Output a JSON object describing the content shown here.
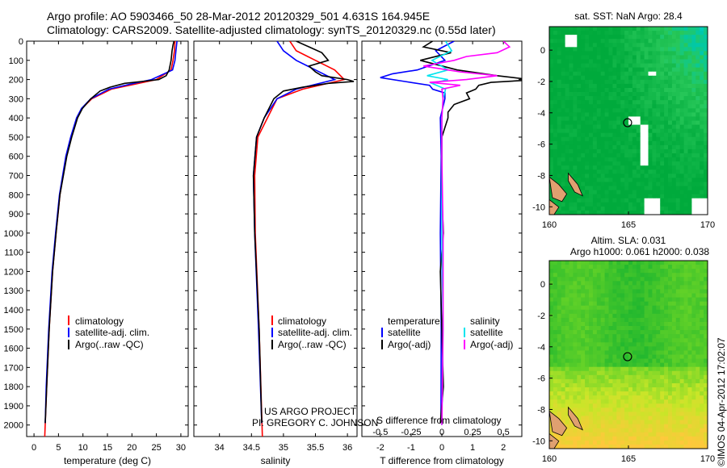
{
  "header": {
    "title_line1": "Argo profile: AO 5903466_50 28-Mar-2012 20120329_501 4.631S 164.945E",
    "title_line2": "Climatology: CARS2009. Satellite-adjusted climatology: synTS_20120329.nc (0.55d later)"
  },
  "colors": {
    "climatology": "#ff0000",
    "satellite": "#0000ff",
    "argo": "#000000",
    "sal_satellite": "#00e5ee",
    "sal_argo": "#ff00ff"
  },
  "chart_data": [
    {
      "id": "temperature",
      "type": "line",
      "xlabel": "temperature (deg C)",
      "ylabel": "",
      "xlim": [
        -1.5,
        31.5
      ],
      "ylim": [
        2060,
        0
      ],
      "xticks": [
        "0",
        "5",
        "10",
        "15",
        "20",
        "25",
        "30"
      ],
      "yticks": [
        "0",
        "100",
        "200",
        "300",
        "400",
        "500",
        "600",
        "700",
        "800",
        "900",
        "1000",
        "1100",
        "1200",
        "1300",
        "1400",
        "1500",
        "1600",
        "1700",
        "1800",
        "1900",
        "2000"
      ],
      "legend": [
        "climatology",
        "satellite-adj. clim.",
        "Argo(..raw -QC)"
      ],
      "series": [
        {
          "name": "climatology",
          "depth": [
            0,
            50,
            100,
            150,
            200,
            225,
            250,
            300,
            350,
            400,
            500,
            600,
            800,
            1000,
            1200,
            1500,
            1800,
            2060
          ],
          "values": [
            28.8,
            28.7,
            28.4,
            28.0,
            25.0,
            20.5,
            15.8,
            11.8,
            9.8,
            8.8,
            7.6,
            6.6,
            5.3,
            4.5,
            3.8,
            3.1,
            2.6,
            2.2
          ]
        },
        {
          "name": "satellite-adj. clim.",
          "depth": [
            0,
            50,
            100,
            150,
            200,
            225,
            250,
            300,
            350,
            400,
            500,
            600,
            800,
            1000,
            1200,
            1500,
            1800,
            1990
          ],
          "values": [
            29.2,
            29.0,
            28.8,
            28.3,
            24.0,
            19.5,
            15.3,
            11.6,
            9.7,
            8.7,
            7.5,
            6.5,
            5.2,
            4.4,
            3.7,
            3.0,
            2.5,
            2.3
          ]
        },
        {
          "name": "Argo(..raw -QC)",
          "depth": [
            0,
            20,
            50,
            100,
            150,
            180,
            200,
            210,
            220,
            240,
            260,
            300,
            350,
            400,
            500,
            600,
            800,
            1000,
            1200,
            1500,
            1800,
            1990
          ],
          "values": [
            28.6,
            28.4,
            28.2,
            28.0,
            27.6,
            27.0,
            25.5,
            22.0,
            18.5,
            15.5,
            13.5,
            11.6,
            9.9,
            8.9,
            7.7,
            6.7,
            5.3,
            4.5,
            3.8,
            3.1,
            2.6,
            2.3
          ]
        }
      ]
    },
    {
      "id": "salinity",
      "type": "line",
      "xlabel": "salinity",
      "xlim": [
        33.6,
        36.15
      ],
      "ylim": [
        2060,
        0
      ],
      "xticks": [
        "34",
        "34.5",
        "35",
        "35.5",
        "36"
      ],
      "legend": [
        "climatology",
        "satellite-adj. clim.",
        "Argo(..raw -QC)"
      ],
      "series": [
        {
          "name": "climatology",
          "depth": [
            0,
            50,
            100,
            150,
            200,
            250,
            300,
            400,
            500,
            700,
            1000,
            1500,
            2060
          ],
          "values": [
            35.1,
            35.2,
            35.5,
            35.8,
            35.95,
            35.3,
            34.9,
            34.75,
            34.6,
            34.55,
            34.56,
            34.62,
            34.67
          ]
        },
        {
          "name": "satellite-adj. clim.",
          "depth": [
            0,
            50,
            100,
            150,
            200,
            250,
            300,
            400,
            500,
            700,
            1000,
            1500,
            1990
          ],
          "values": [
            34.9,
            35.0,
            35.2,
            35.5,
            35.8,
            35.2,
            34.9,
            34.7,
            34.58,
            34.53,
            34.55,
            34.61,
            34.66
          ]
        },
        {
          "name": "Argo(..raw -QC)",
          "depth": [
            0,
            30,
            60,
            100,
            130,
            160,
            180,
            200,
            210,
            220,
            240,
            260,
            300,
            400,
            500,
            700,
            1000,
            1500,
            1990
          ],
          "values": [
            35.2,
            35.4,
            35.6,
            35.7,
            35.4,
            35.5,
            35.6,
            36.0,
            36.1,
            35.7,
            35.3,
            35.0,
            34.85,
            34.7,
            34.58,
            34.53,
            34.55,
            34.62,
            34.66
          ]
        }
      ]
    },
    {
      "id": "difference",
      "type": "line",
      "xlabel": "T difference from climatology",
      "xlabel2": "S difference from climatology",
      "xlim": [
        -2.6,
        2.6
      ],
      "ylim": [
        2060,
        0
      ],
      "xticks": [
        "-2",
        "-1",
        "0",
        "1",
        "2"
      ],
      "xticks2": [
        "-0.5",
        "-0.25",
        "0",
        "0.25",
        "0.5"
      ],
      "legend_headers": [
        "temperature",
        "salinity"
      ],
      "legend": [
        "satellite",
        "Argo(-adj)",
        "satellite",
        "Argo(-adj)"
      ],
      "series": [
        {
          "name": "T satellite",
          "depth": [
            0,
            50,
            100,
            150,
            170,
            190,
            210,
            230,
            250,
            270,
            300,
            400,
            600,
            1000,
            1500,
            1990
          ],
          "values": [
            0.4,
            -0.2,
            0.1,
            -0.8,
            -1.6,
            -2.0,
            -1.2,
            -0.4,
            -0.3,
            0.1,
            0.1,
            -0.05,
            -0.02,
            -0.05,
            -0.02,
            -0.03
          ]
        },
        {
          "name": "T Argo(-adj)",
          "depth": [
            0,
            30,
            60,
            100,
            150,
            180,
            195,
            205,
            215,
            230,
            250,
            270,
            300,
            330,
            370,
            400,
            450,
            500,
            600,
            800,
            1000,
            1200,
            1500,
            1800,
            1990
          ],
          "values": [
            -0.3,
            -0.6,
            0.3,
            -0.7,
            0.5,
            1.8,
            2.6,
            2.6,
            1.6,
            1.2,
            1.1,
            0.8,
            0.9,
            0.4,
            0.2,
            0.2,
            0.1,
            0.0,
            0.0,
            0.0,
            0.05,
            -0.05,
            0.0,
            0.05,
            -0.05
          ]
        },
        {
          "name": "S satellite",
          "depth": [
            0,
            50,
            100,
            150,
            180,
            200,
            220,
            250,
            300,
            400,
            600,
            1000,
            1500,
            2000
          ],
          "values": [
            0.03,
            0.08,
            -0.08,
            0.05,
            -0.12,
            0.05,
            -0.08,
            0.03,
            0.01,
            0.0,
            0.0,
            0.0,
            0.01,
            0.0
          ]
        },
        {
          "name": "S Argo(-adj)",
          "depth": [
            0,
            30,
            60,
            80,
            100,
            130,
            160,
            180,
            200,
            215,
            230,
            250,
            300,
            400,
            600,
            1000,
            1500,
            2000
          ],
          "values": [
            0.5,
            0.55,
            0.45,
            0.2,
            0.1,
            -0.15,
            0.15,
            0.45,
            0.2,
            -0.1,
            0.15,
            0.0,
            0.01,
            0.0,
            0.0,
            0.01,
            0.01,
            0.0
          ]
        }
      ]
    },
    {
      "id": "sst_map",
      "type": "heatmap",
      "title": "sat. SST: NaN Argo: 28.4",
      "xlim": [
        160,
        170
      ],
      "ylim": [
        -10.5,
        1.5
      ],
      "xticks": [
        "160",
        "165",
        "170"
      ],
      "yticks": [
        "0",
        "-2",
        "-4",
        "-6",
        "-8",
        "-10"
      ],
      "argo_position": {
        "lon": 164.945,
        "lat": -4.631
      }
    },
    {
      "id": "sla_map",
      "type": "heatmap",
      "title_line1": "Altim. SLA: 0.031",
      "title_line2": "Argo h1000: 0.061 h2000: 0.038",
      "xlim": [
        160,
        170
      ],
      "ylim": [
        -10.5,
        1.5
      ],
      "xticks": [
        "160",
        "165",
        "170"
      ],
      "yticks": [
        "0",
        "-2",
        "-4",
        "-6",
        "-8",
        "-10"
      ],
      "argo_position": {
        "lon": 164.945,
        "lat": -4.631
      }
    }
  ],
  "annotations": {
    "project_line1": "US ARGO PROJECT",
    "project_line2": "PI: GREGORY C. JOHNSON",
    "stamp": "©IMOS 04-Apr-2012 17:02:07"
  }
}
